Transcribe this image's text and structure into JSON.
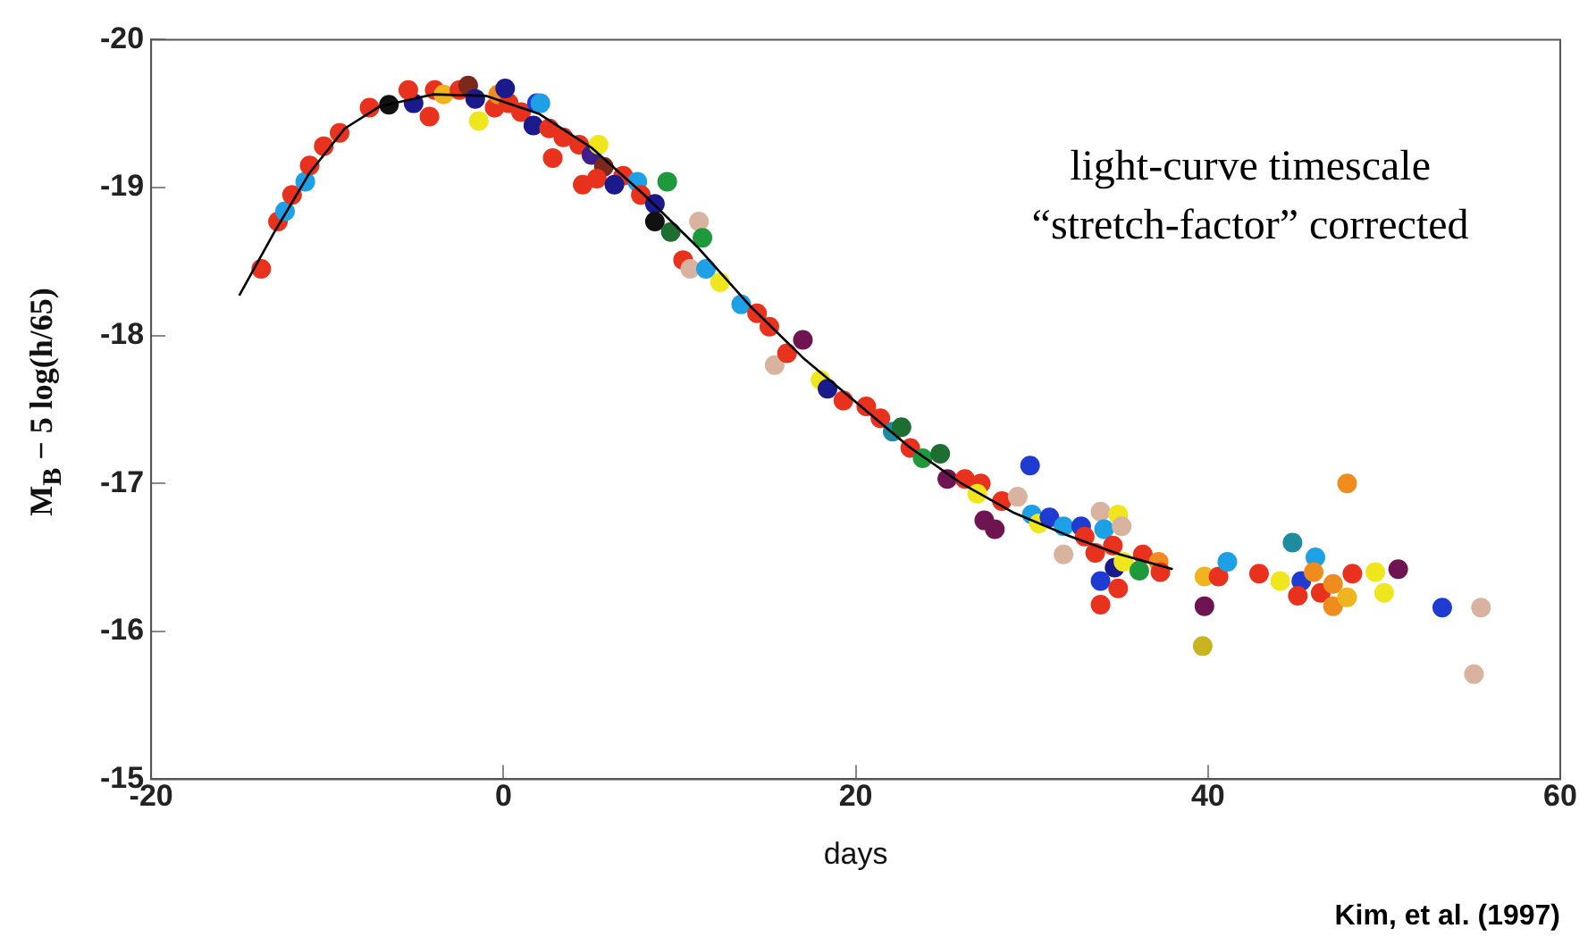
{
  "chart_data": {
    "type": "scatter",
    "xlabel": "days",
    "ylabel": "M$_{B}$ − 5 log(h/65)",
    "annotations": [
      "light-curve timescale\n“stretch-factor” corrected",
      "Kim, et al. (1997)"
    ],
    "xlim": [
      -20,
      60
    ],
    "xticks": [
      -20,
      0,
      20,
      40,
      60
    ],
    "ylim": [
      -15,
      -20
    ],
    "yticks": [
      -20,
      -19,
      -18,
      -17,
      -16,
      -15
    ],
    "grid": false,
    "legend": false,
    "series": [
      {
        "marker": "circle",
        "x": [
          -13.75,
          -12.8,
          -12.4,
          -12.0,
          -11.25,
          -11.0,
          -10.2,
          -9.3,
          -7.6,
          -6.5,
          -5.1,
          -5.4,
          -4.2,
          -3.9,
          -3.4,
          -2.5,
          -2.0,
          -1.6,
          -1.4,
          -0.5,
          -0.3,
          0.3,
          0.1,
          1.0,
          1.9,
          2.1,
          1.7,
          2.6,
          3.4,
          4.3,
          5.0,
          5.4,
          2.8,
          4.5,
          5.7,
          5.3,
          6.8,
          6.3,
          7.6,
          9.3,
          7.8,
          8.6,
          8.6,
          9.5,
          11.1,
          11.3,
          10.2,
          10.6,
          11.5,
          12.3,
          13.5,
          14.4,
          15.1,
          15.4,
          16.1,
          17.0,
          18.0,
          18.4,
          19.3,
          20.6,
          21.4,
          22.1,
          22.6,
          23.1,
          23.8,
          24.8,
          29.9,
          47.9,
          25.2,
          26.2,
          27.1,
          26.9,
          28.3,
          29.2,
          27.3,
          27.9,
          30.0,
          30.4,
          31.0,
          31.8,
          31.8,
          32.8,
          33.0,
          33.6,
          33.9,
          34.1,
          34.9,
          35.1,
          34.6,
          34.7,
          35.2,
          33.9,
          34.9,
          33.9,
          36.3,
          36.1,
          37.2,
          37.3,
          39.8,
          40.6,
          41.1,
          39.8,
          39.7,
          42.9,
          44.1,
          44.8,
          45.3,
          45.1,
          46.1,
          46.0,
          46.4,
          47.1,
          47.1,
          47.9,
          48.2,
          49.5,
          50.0,
          50.8,
          53.3,
          55.5,
          55.1
        ],
        "values": [
          -18.45,
          -18.77,
          -18.84,
          -18.95,
          -19.04,
          -19.15,
          -19.28,
          -19.37,
          -19.54,
          -19.56,
          -19.57,
          -19.66,
          -19.48,
          -19.66,
          -19.63,
          -19.66,
          -19.69,
          -19.6,
          -19.45,
          -19.54,
          -19.63,
          -19.57,
          -19.67,
          -19.51,
          -19.57,
          -19.57,
          -19.42,
          -19.4,
          -19.34,
          -19.29,
          -19.22,
          -19.29,
          -19.2,
          -19.02,
          -19.14,
          -19.06,
          -19.08,
          -19.02,
          -19.04,
          -19.04,
          -18.95,
          -18.89,
          -18.77,
          -18.7,
          -18.77,
          -18.66,
          -18.51,
          -18.45,
          -18.45,
          -18.36,
          -18.21,
          -18.15,
          -18.06,
          -17.8,
          -17.88,
          -17.97,
          -17.7,
          -17.64,
          -17.56,
          -17.52,
          -17.44,
          -17.35,
          -17.38,
          -17.24,
          -17.17,
          -17.2,
          -17.12,
          -17.0,
          -17.03,
          -17.03,
          -17.0,
          -16.93,
          -16.88,
          -16.91,
          -16.75,
          -16.69,
          -16.79,
          -16.73,
          -16.77,
          -16.71,
          -16.52,
          -16.71,
          -16.64,
          -16.53,
          -16.81,
          -16.69,
          -16.79,
          -16.71,
          -16.58,
          -16.43,
          -16.47,
          -16.34,
          -16.29,
          -16.18,
          -16.52,
          -16.41,
          -16.47,
          -16.4,
          -16.37,
          -16.37,
          -16.47,
          -16.17,
          -15.9,
          -16.39,
          -16.34,
          -16.6,
          -16.34,
          -16.24,
          -16.5,
          -16.4,
          -16.26,
          -16.32,
          -16.17,
          -16.23,
          -16.39,
          -16.4,
          -16.26,
          -16.42,
          -16.16,
          -16.16,
          -15.71
        ],
        "colors": [
          "#e8321e",
          "#e8321e",
          "#1ea0e6",
          "#e8321e",
          "#1ea0e6",
          "#e8321e",
          "#e8321e",
          "#e8321e",
          "#e8321e",
          "#111111",
          "#1a1a8c",
          "#e8321e",
          "#e8321e",
          "#e8321e",
          "#f0b41e",
          "#e8321e",
          "#7a2a1a",
          "#1a1a8c",
          "#f0e61e",
          "#e8321e",
          "#f08c1e",
          "#e8321e",
          "#1a1a8c",
          "#e8321e",
          "#1e3cd2",
          "#1ea0e6",
          "#1a1a8c",
          "#e8321e",
          "#e8321e",
          "#e8321e",
          "#3c1e8c",
          "#f0e61e",
          "#e8321e",
          "#e8321e",
          "#7a2a1a",
          "#e8321e",
          "#e8321e",
          "#1a1a8c",
          "#1ea0e6",
          "#1e9a3c",
          "#e8321e",
          "#1a1a8c",
          "#111111",
          "#1e6e32",
          "#d8b4a0",
          "#1e9a3c",
          "#e8321e",
          "#d8b4a0",
          "#1ea0e6",
          "#f0e61e",
          "#1ea0e6",
          "#e8321e",
          "#e8321e",
          "#d8b4a0",
          "#e8321e",
          "#6e1450",
          "#f0e61e",
          "#1a1a8c",
          "#e8321e",
          "#e8321e",
          "#e8321e",
          "#1e8ca0",
          "#1e6e32",
          "#e8321e",
          "#1e9a3c",
          "#1e6e32",
          "#1e3cd2",
          "#f08c1e",
          "#6e1450",
          "#e8321e",
          "#e8321e",
          "#f0e61e",
          "#e8321e",
          "#d8b4a0",
          "#6e1450",
          "#6e1450",
          "#1ea0e6",
          "#f0e61e",
          "#1e3cd2",
          "#1ea0e6",
          "#d8b4a0",
          "#1e3cd2",
          "#e8321e",
          "#e8321e",
          "#d8b4a0",
          "#1ea0e6",
          "#f0e61e",
          "#d8b4a0",
          "#e8321e",
          "#1a1a8c",
          "#f0e61e",
          "#1e3cd2",
          "#e8321e",
          "#e8321e",
          "#e8321e",
          "#1e9a3c",
          "#f08c1e",
          "#e8321e",
          "#f0b41e",
          "#e8321e",
          "#1ea0e6",
          "#6e1450",
          "#c8b41e",
          "#e8321e",
          "#f0e61e",
          "#1e8ca0",
          "#1e3cd2",
          "#e8321e",
          "#1ea0e6",
          "#f08c1e",
          "#e8321e",
          "#f08c1e",
          "#f08c1e",
          "#f0b41e",
          "#e8321e",
          "#f0e61e",
          "#f0e61e",
          "#6e1450",
          "#1e3cd2",
          "#d8b4a0",
          "#d8b4a0"
        ]
      },
      {
        "type": "line",
        "color": "#000000",
        "x": [
          -15,
          -13,
          -11,
          -9,
          -7,
          -4,
          -1,
          2,
          5,
          8,
          11,
          14,
          17,
          20,
          23,
          26,
          29,
          32,
          35,
          38
        ],
        "values": [
          -18.27,
          -18.7,
          -19.1,
          -19.4,
          -19.55,
          -19.63,
          -19.62,
          -19.5,
          -19.27,
          -18.95,
          -18.6,
          -18.2,
          -17.85,
          -17.55,
          -17.25,
          -17.0,
          -16.8,
          -16.65,
          -16.52,
          -16.42
        ]
      }
    ]
  }
}
